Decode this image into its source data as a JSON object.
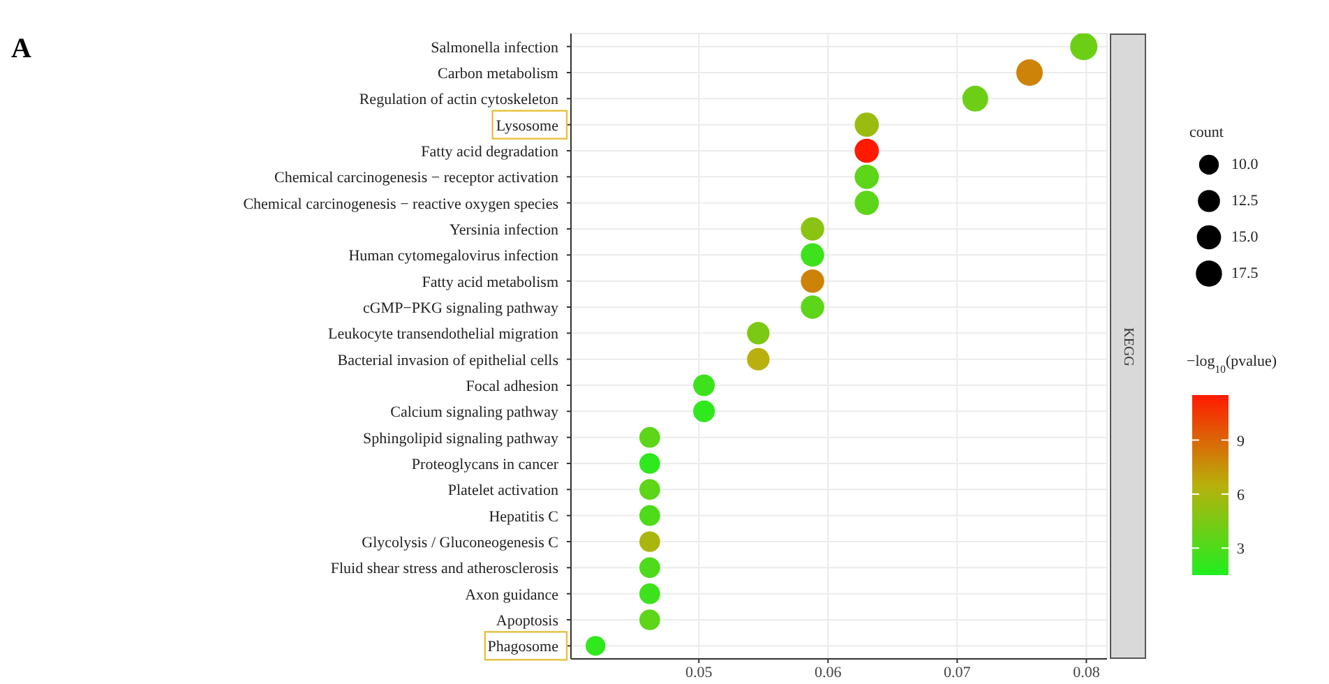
{
  "chart_data": {
    "type": "bubble",
    "title": "A",
    "categories": [
      "Salmonella infection",
      "Carbon metabolism",
      "Regulation of actin cytoskeleton",
      "Lysosome",
      "Fatty acid degradation",
      "Chemical carcinogenesis − receptor activation",
      "Chemical carcinogenesis − reactive oxygen species",
      "Yersinia infection",
      "Human cytomegalovirus infection",
      "Fatty acid metabolism",
      "cGMP−PKG signaling pathway",
      "Leukocyte transendothelial migration",
      "Bacterial invasion of epithelial cells",
      "Focal adhesion",
      "Calcium signaling pathway",
      "Sphingolipid signaling pathway",
      "Proteoglycans in cancer",
      "Platelet activation",
      "Hepatitis C",
      "Glycolysis / Gluconeogenesis C",
      "Fluid shear stress and atherosclerosis",
      "Axon guidance",
      "Apoptosis",
      "Phagosome"
    ],
    "values": [
      0.0798,
      0.0756,
      0.0714,
      0.063,
      0.063,
      0.063,
      0.063,
      0.0588,
      0.0588,
      0.0588,
      0.0588,
      0.0546,
      0.0546,
      0.0504,
      0.0504,
      0.0462,
      0.0462,
      0.0462,
      0.0462,
      0.0462,
      0.0462,
      0.0462,
      0.0462,
      0.042
    ],
    "sizes": [
      19,
      18,
      17,
      15,
      15,
      15,
      15,
      14,
      14,
      14,
      14,
      13,
      13,
      12,
      12,
      11,
      11,
      11,
      11,
      11,
      11,
      11,
      11,
      10
    ],
    "cvalues": [
      4,
      8,
      4,
      5.5,
      11.5,
      3.5,
      3.5,
      5,
      2.5,
      8,
      3.5,
      4.5,
      6.5,
      2.5,
      2,
      3.5,
      2,
      3.5,
      3,
      6,
      3,
      2.5,
      3.5,
      2
    ],
    "orientation": "horizontal",
    "xlim": [
      0.0401,
      0.0816
    ],
    "xticks": [
      0.05,
      0.06,
      0.07,
      0.08
    ],
    "size_legend": [
      {
        "value": 10,
        "label": "10.0"
      },
      12.5,
      {
        "value": 15,
        "label": "15.0"
      },
      17.5
    ],
    "legend_title": "count",
    "clabel": "−log$_{10}$(pvalue)",
    "clim": [
      1.5,
      11.5
    ],
    "cticks": [
      3,
      6,
      9
    ],
    "annotations": [
      "KEGG"
    ],
    "grid": true
  }
}
